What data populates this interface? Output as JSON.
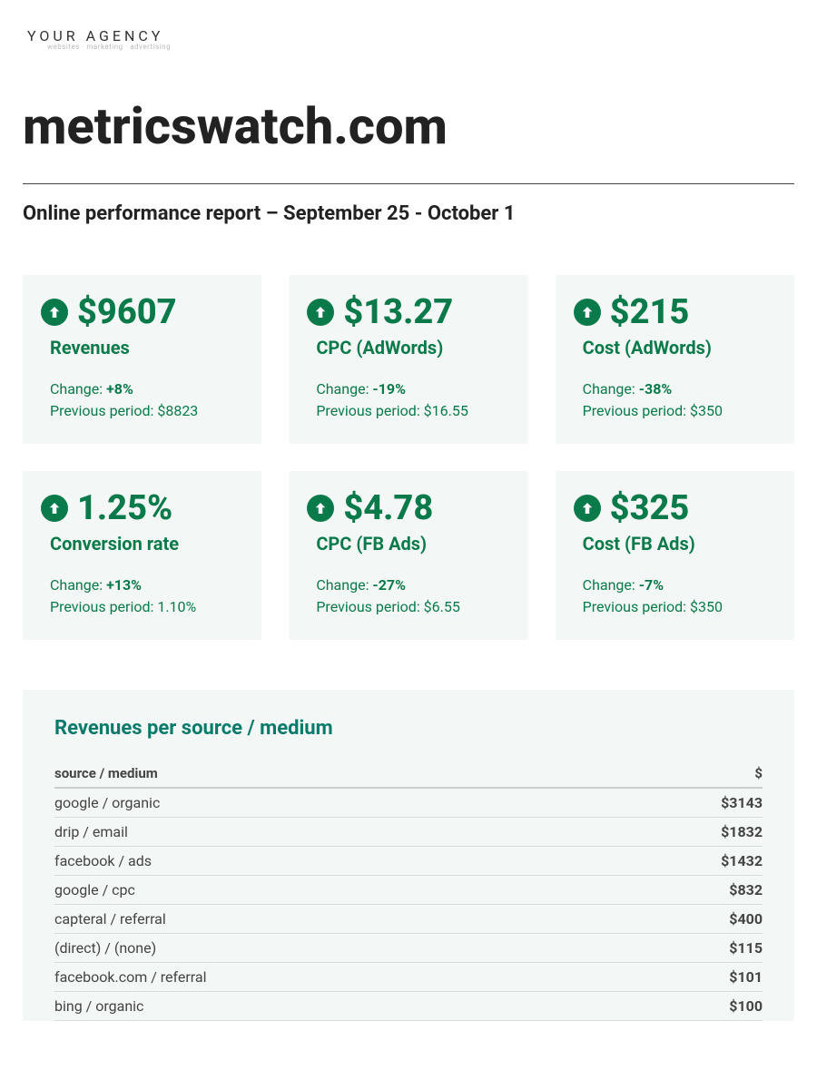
{
  "agency": {
    "name": "YOUR AGENCY",
    "tagline": "websites · marketing · advertising"
  },
  "page_title": "metricswatch.com",
  "subtitle": "Online performance report – September 25 - October 1",
  "colors": {
    "card_bg": "#f3f7f5",
    "accent_green": "#0a7a4a",
    "teal_title": "#0a7a6a",
    "text": "#222222"
  },
  "cards": [
    {
      "value": "$9607",
      "label": "Revenues",
      "direction": "up",
      "change_prefix": "Change: ",
      "change_value": "+8%",
      "previous_prefix": "Previous period: ",
      "previous_value": "$8823"
    },
    {
      "value": "$13.27",
      "label": "CPC (AdWords)",
      "direction": "up",
      "change_prefix": "Change: ",
      "change_value": "-19%",
      "previous_prefix": "Previous period: ",
      "previous_value": "$16.55"
    },
    {
      "value": "$215",
      "label": "Cost (AdWords)",
      "direction": "up",
      "change_prefix": "Change: ",
      "change_value": "-38%",
      "previous_prefix": "Previous period: ",
      "previous_value": "$350"
    },
    {
      "value": "1.25%",
      "label": "Conversion rate",
      "direction": "up",
      "change_prefix": "Change: ",
      "change_value": "+13%",
      "previous_prefix": "Previous period: ",
      "previous_value": "1.10%"
    },
    {
      "value": "$4.78",
      "label": "CPC (FB Ads)",
      "direction": "up",
      "change_prefix": "Change: ",
      "change_value": "-27%",
      "previous_prefix": "Previous period: ",
      "previous_value": "$6.55"
    },
    {
      "value": "$325",
      "label": "Cost (FB Ads)",
      "direction": "up",
      "change_prefix": "Change: ",
      "change_value": "-7%",
      "previous_prefix": "Previous period: ",
      "previous_value": "$350"
    }
  ],
  "table": {
    "title": "Revenues per source / medium",
    "col1": "source / medium",
    "col2": "$",
    "rows": [
      {
        "source": "google / organic",
        "amount": "$3143"
      },
      {
        "source": "drip / email",
        "amount": "$1832"
      },
      {
        "source": "facebook / ads",
        "amount": "$1432"
      },
      {
        "source": "google / cpc",
        "amount": "$832"
      },
      {
        "source": "capteral / referral",
        "amount": "$400"
      },
      {
        "source": "(direct) / (none)",
        "amount": "$115"
      },
      {
        "source": "facebook.com / referral",
        "amount": "$101"
      },
      {
        "source": "bing / organic",
        "amount": "$100"
      }
    ]
  }
}
